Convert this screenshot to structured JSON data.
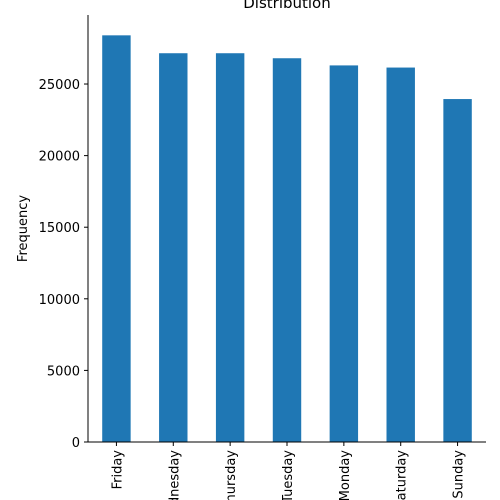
{
  "chart_data": {
    "type": "bar",
    "title": "Distribution",
    "xlabel": "",
    "ylabel": "Frequency",
    "categories": [
      "Friday",
      "Wednesday",
      "Thursday",
      "Tuesday",
      "Monday",
      "Saturday",
      "Sunday"
    ],
    "values": [
      28400,
      27150,
      27150,
      26800,
      26300,
      26150,
      23950
    ],
    "yticks": [
      0,
      5000,
      10000,
      15000,
      20000,
      25000
    ],
    "ylim": [
      0,
      29820
    ],
    "bar_color": "#1f77b4",
    "grid": false,
    "legend": false
  }
}
